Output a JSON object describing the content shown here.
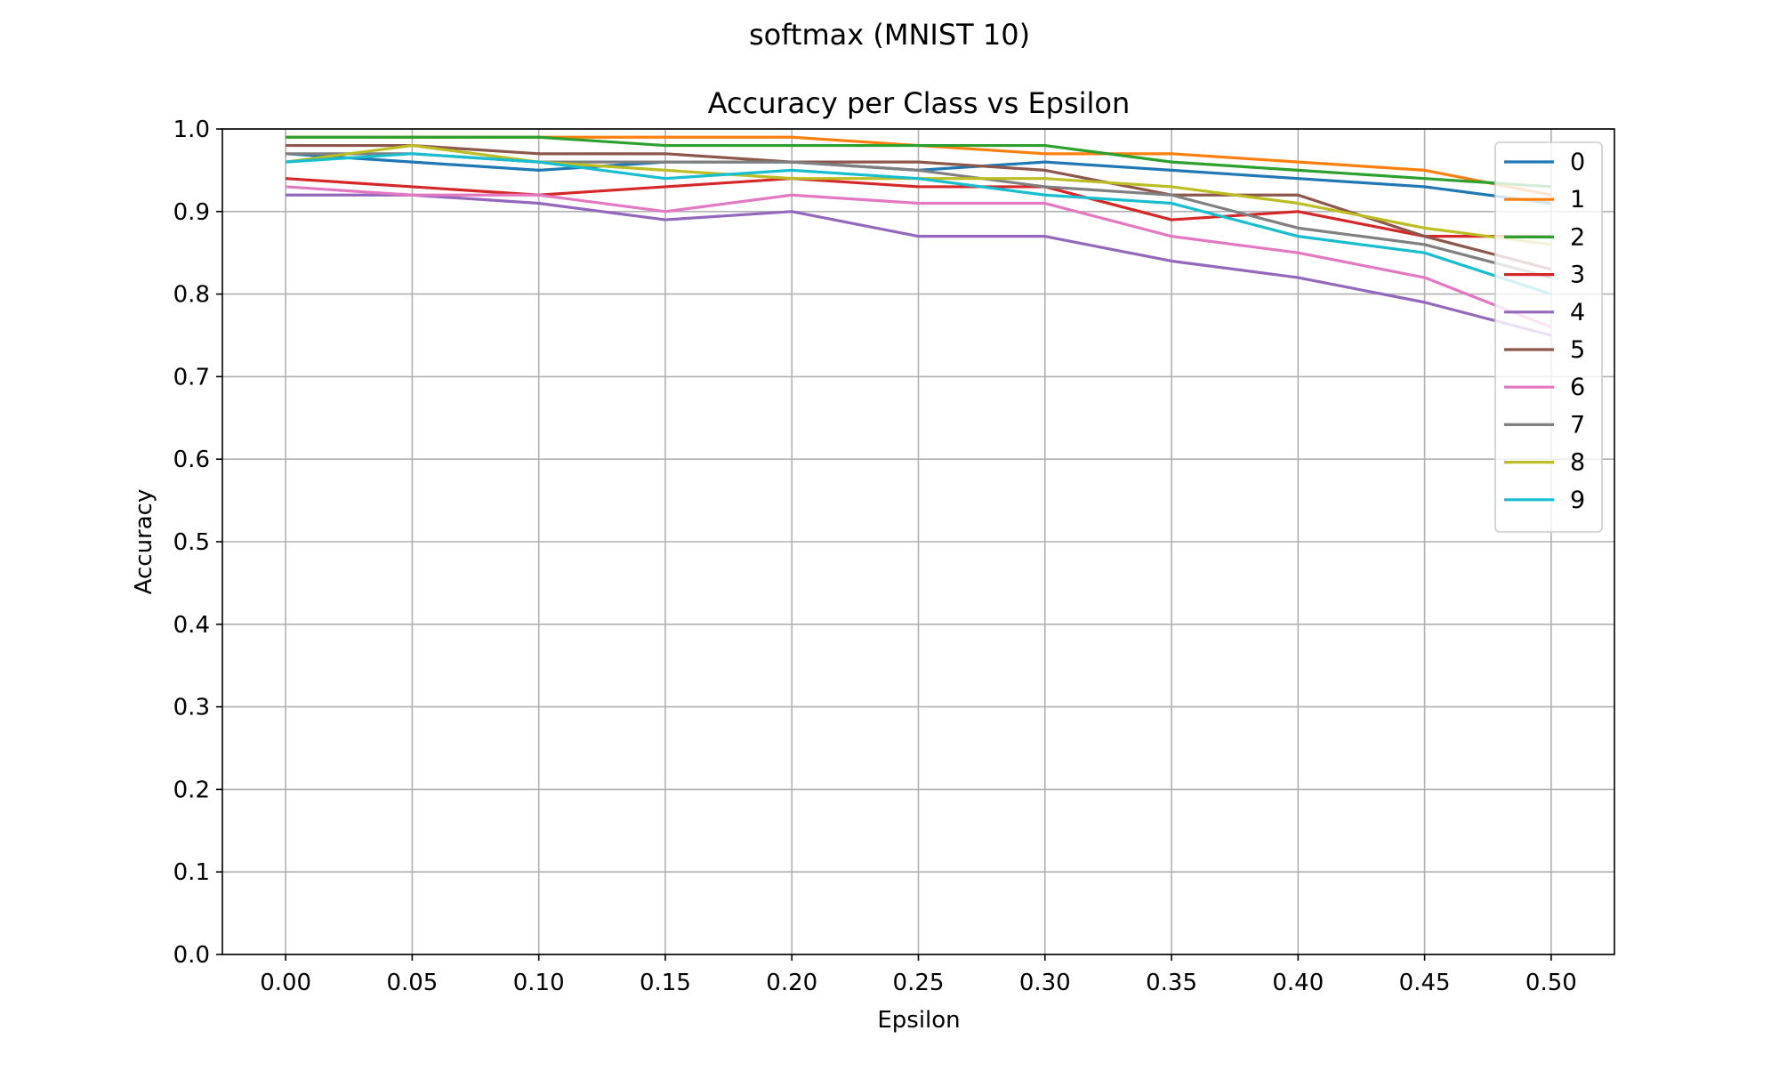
{
  "figure": {
    "suptitle": "softmax (MNIST 10)"
  },
  "chart_data": {
    "type": "line",
    "title": "Accuracy per Class vs Epsilon",
    "xlabel": "Epsilon",
    "ylabel": "Accuracy",
    "xlim": [
      -0.025,
      0.525
    ],
    "ylim": [
      0.0,
      1.0
    ],
    "grid": true,
    "legend_position": "top-right",
    "x": [
      0.0,
      0.05,
      0.1,
      0.15,
      0.2,
      0.25,
      0.3,
      0.35,
      0.4,
      0.45,
      0.5
    ],
    "xticks": [
      "0.00",
      "0.05",
      "0.10",
      "0.15",
      "0.20",
      "0.25",
      "0.30",
      "0.35",
      "0.40",
      "0.45",
      "0.50"
    ],
    "yticks": [
      "0.0",
      "0.1",
      "0.2",
      "0.3",
      "0.4",
      "0.5",
      "0.6",
      "0.7",
      "0.8",
      "0.9",
      "1.0"
    ],
    "series": [
      {
        "name": "0",
        "color": "#1f77b4",
        "values": [
          0.97,
          0.96,
          0.95,
          0.96,
          0.96,
          0.95,
          0.96,
          0.95,
          0.94,
          0.93,
          0.91
        ]
      },
      {
        "name": "1",
        "color": "#ff7f0e",
        "values": [
          0.99,
          0.99,
          0.99,
          0.99,
          0.99,
          0.98,
          0.97,
          0.97,
          0.96,
          0.95,
          0.92
        ]
      },
      {
        "name": "2",
        "color": "#2ca02c",
        "values": [
          0.99,
          0.99,
          0.99,
          0.98,
          0.98,
          0.98,
          0.98,
          0.96,
          0.95,
          0.94,
          0.93
        ]
      },
      {
        "name": "3",
        "color": "#d62728",
        "values": [
          0.94,
          0.93,
          0.92,
          0.93,
          0.94,
          0.93,
          0.93,
          0.89,
          0.9,
          0.87,
          0.87
        ]
      },
      {
        "name": "4",
        "color": "#9467bd",
        "values": [
          0.92,
          0.92,
          0.91,
          0.89,
          0.9,
          0.87,
          0.87,
          0.84,
          0.82,
          0.79,
          0.75
        ]
      },
      {
        "name": "5",
        "color": "#8c564b",
        "values": [
          0.98,
          0.98,
          0.97,
          0.97,
          0.96,
          0.96,
          0.95,
          0.92,
          0.92,
          0.87,
          0.83
        ]
      },
      {
        "name": "6",
        "color": "#e377c2",
        "values": [
          0.93,
          0.92,
          0.92,
          0.9,
          0.92,
          0.91,
          0.91,
          0.87,
          0.85,
          0.82,
          0.76
        ]
      },
      {
        "name": "7",
        "color": "#7f7f7f",
        "values": [
          0.97,
          0.97,
          0.96,
          0.96,
          0.96,
          0.95,
          0.93,
          0.92,
          0.88,
          0.86,
          0.82
        ]
      },
      {
        "name": "8",
        "color": "#bcbd22",
        "values": [
          0.96,
          0.98,
          0.96,
          0.95,
          0.94,
          0.94,
          0.94,
          0.93,
          0.91,
          0.88,
          0.86
        ]
      },
      {
        "name": "9",
        "color": "#17becf",
        "values": [
          0.96,
          0.97,
          0.96,
          0.94,
          0.95,
          0.94,
          0.92,
          0.91,
          0.87,
          0.85,
          0.8
        ]
      }
    ]
  }
}
